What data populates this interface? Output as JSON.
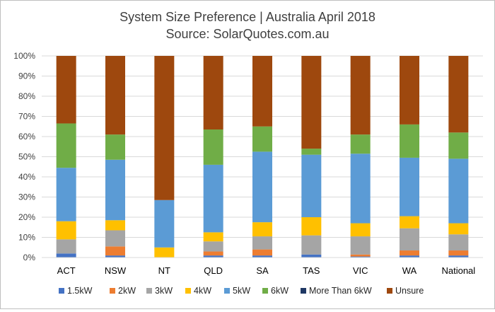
{
  "chart_data": {
    "type": "bar",
    "stacked": true,
    "title": "System Size Preference  | Australia April 2018",
    "subtitle": "Source: SolarQuotes.com.au",
    "categories": [
      "ACT",
      "NSW",
      "NT",
      "QLD",
      "SA",
      "TAS",
      "VIC",
      "WA",
      "National"
    ],
    "ylim": [
      0,
      100
    ],
    "yticks": [
      "0%",
      "10%",
      "20%",
      "30%",
      "40%",
      "50%",
      "60%",
      "70%",
      "80%",
      "90%",
      "100%"
    ],
    "grid": true,
    "legend_position": "bottom",
    "series": [
      {
        "name": "1.5kW",
        "color": "#4472c4",
        "values": [
          2,
          1,
          0,
          1,
          1,
          1.5,
          0.5,
          1,
          1
        ]
      },
      {
        "name": "2kW",
        "color": "#ed7d31",
        "values": [
          0,
          4.5,
          0,
          2,
          3,
          0,
          1,
          2.5,
          2.5
        ]
      },
      {
        "name": "3kW",
        "color": "#a5a5a5",
        "values": [
          7,
          8,
          0,
          5,
          6.5,
          9.5,
          9,
          11,
          8
        ]
      },
      {
        "name": "4kW",
        "color": "#ffc000",
        "values": [
          9,
          5,
          5,
          4.5,
          7,
          9,
          6.5,
          6,
          5.5
        ]
      },
      {
        "name": "5kW",
        "color": "#5b9bd5",
        "values": [
          26.5,
          30,
          23.5,
          33.5,
          35,
          31,
          34.5,
          29,
          32
        ]
      },
      {
        "name": "6kW",
        "color": "#70ad47",
        "values": [
          22,
          12.5,
          0,
          17.5,
          12.5,
          3,
          9.5,
          16.5,
          13
        ]
      },
      {
        "name": "More Than 6kW",
        "color": "#1f3864",
        "values": [
          0,
          0,
          0,
          0,
          0,
          0,
          0,
          0,
          0
        ]
      },
      {
        "name": "Unsure",
        "color": "#9e480e",
        "values": [
          33.5,
          39,
          71.5,
          36.5,
          35,
          46,
          39,
          34,
          38
        ]
      }
    ]
  }
}
